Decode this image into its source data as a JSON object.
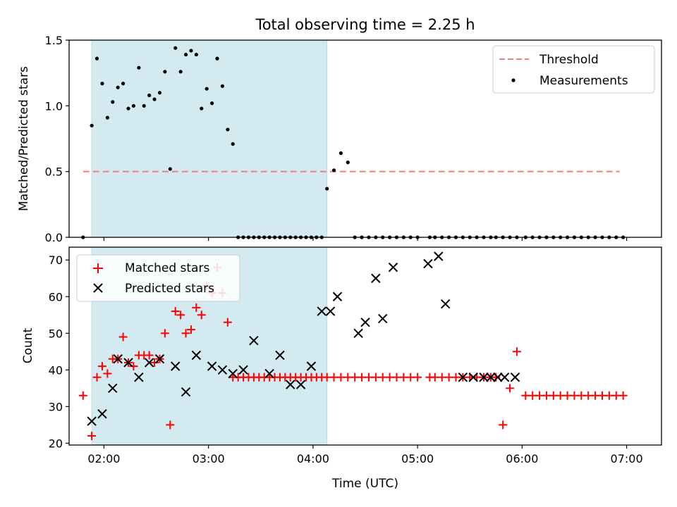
{
  "chart_data": {
    "title": "Total observing time = 2.25 h",
    "x_tick_labels": [
      "02:00",
      "03:00",
      "04:00",
      "05:00",
      "06:00",
      "07:00"
    ],
    "x_ticks_min": [
      120,
      180,
      240,
      300,
      360,
      420
    ],
    "xlim_min": [
      100,
      440
    ],
    "xlabel": "Time (UTC)",
    "shaded_interval_min": [
      113,
      248
    ],
    "shade_color": "#d3eaf0",
    "panels": [
      {
        "type": "scatter",
        "ylabel": "Matched/Predicted stars",
        "ylim": [
          0,
          1.5
        ],
        "y_ticks": [
          "0.0",
          "0.5",
          "1.0",
          "1.5"
        ],
        "threshold": {
          "name": "Threshold",
          "value": 0.5,
          "x_range_min": [
            108,
            416
          ],
          "color": "#f08080"
        },
        "series": [
          {
            "name": "Measurements",
            "color": "#000000",
            "marker": "dot",
            "x_min": [
              108,
              113,
              116,
              119,
              122,
              125,
              128,
              131,
              134,
              137,
              140,
              143,
              146,
              149,
              152,
              155,
              158,
              161,
              164,
              167,
              170,
              173,
              176,
              179,
              182,
              185,
              188,
              191,
              194,
              197,
              200,
              203,
              206,
              209,
              212,
              215,
              218,
              221,
              224,
              227,
              230,
              233,
              236,
              239,
              242,
              245,
              248,
              252,
              256,
              260,
              264,
              268,
              272,
              276,
              280,
              284,
              288,
              292,
              296,
              300,
              307,
              310,
              314,
              318,
              322,
              326,
              330,
              334,
              338,
              342,
              345,
              349,
              353,
              357,
              362,
              366,
              370,
              374,
              378,
              382,
              386,
              390,
              394,
              398,
              402,
              406,
              410,
              414,
              418
            ],
            "y": [
              0.0,
              0.85,
              1.36,
              1.17,
              0.91,
              1.03,
              1.14,
              1.17,
              0.98,
              1.0,
              1.29,
              1.0,
              1.08,
              1.05,
              1.1,
              1.26,
              0.52,
              1.44,
              1.26,
              1.39,
              1.42,
              1.39,
              0.98,
              1.13,
              1.02,
              1.36,
              1.15,
              0.82,
              0.71,
              0.0,
              0.0,
              0.0,
              0.0,
              0.0,
              0.0,
              0.0,
              0.0,
              0.0,
              0.0,
              0.0,
              0.0,
              0.0,
              0.0,
              0.0,
              0.0,
              0.0,
              0.37,
              0.51,
              0.64,
              0.57,
              0.0,
              0.0,
              0.0,
              0.0,
              0.0,
              0.0,
              0.0,
              0.0,
              0.0,
              0.0,
              0.0,
              0.0,
              0.0,
              0.0,
              0.0,
              0.0,
              0.0,
              0.0,
              0.0,
              0.0,
              0.0,
              0.0,
              0.0,
              0.0,
              0.0,
              0.0,
              0.0,
              0.0,
              0.0,
              0.0,
              0.0,
              0.0,
              0.0,
              0.0,
              0.0,
              0.0,
              0.0,
              0.0,
              0.0
            ]
          }
        ],
        "legend": {
          "placement": "top-right",
          "entries": [
            "Threshold",
            "Measurements"
          ]
        }
      },
      {
        "type": "scatter",
        "ylabel": "Count",
        "ylim": [
          19.5,
          73.5
        ],
        "y_ticks": [
          "20",
          "30",
          "40",
          "50",
          "60",
          "70"
        ],
        "series": [
          {
            "name": "Matched stars",
            "color": "#ff0000",
            "marker": "plus",
            "x_min": [
              108,
              113,
              116,
              119,
              122,
              125,
              128,
              131,
              134,
              137,
              140,
              143,
              146,
              149,
              152,
              155,
              158,
              161,
              164,
              167,
              170,
              173,
              176,
              179,
              182,
              185,
              188,
              191,
              194,
              197,
              200,
              203,
              206,
              209,
              212,
              215,
              218,
              221,
              224,
              227,
              230,
              233,
              236,
              239,
              242,
              245,
              248,
              252,
              256,
              260,
              264,
              268,
              272,
              276,
              280,
              284,
              288,
              292,
              296,
              300,
              307,
              310,
              314,
              318,
              322,
              326,
              330,
              334,
              338,
              342,
              345,
              349,
              353,
              357,
              362,
              366,
              370,
              374,
              378,
              382,
              386,
              390,
              394,
              398,
              402,
              406,
              410,
              414,
              418
            ],
            "y": [
              33,
              22,
              38,
              41,
              39,
              43,
              43,
              49,
              42,
              41,
              44,
              44,
              44,
              42,
              43,
              50,
              25,
              56,
              55,
              50,
              51,
              57,
              55,
              63,
              61,
              68,
              61,
              53,
              38,
              38,
              38,
              38,
              38,
              38,
              38,
              38,
              38,
              38,
              38,
              38,
              38,
              38,
              38,
              38,
              38,
              38,
              38,
              38,
              38,
              38,
              38,
              38,
              38,
              38,
              38,
              38,
              38,
              38,
              38,
              38,
              38,
              38,
              38,
              38,
              38,
              38,
              38,
              38,
              38,
              38,
              38,
              25,
              35,
              45,
              33,
              33,
              33,
              33,
              33,
              33,
              33,
              33,
              33,
              33,
              33,
              33,
              33,
              33,
              33
            ]
          },
          {
            "name": "Predicted stars",
            "color": "#000000",
            "marker": "cross",
            "x_min": [
              113,
              119,
              125,
              128,
              134,
              140,
              146,
              152,
              161,
              167,
              173,
              182,
              188,
              194,
              200,
              206,
              215,
              221,
              227,
              233,
              239,
              245,
              250,
              254,
              266,
              270,
              276,
              280,
              286,
              306,
              312,
              316,
              326,
              332,
              338,
              342,
              346,
              350,
              356
            ],
            "y": [
              26,
              28,
              35,
              43,
              42,
              38,
              42,
              43,
              41,
              34,
              44,
              41,
              40,
              39,
              40,
              48,
              39,
              44,
              36,
              36,
              41,
              56,
              56,
              60,
              50,
              53,
              65,
              54,
              68,
              69,
              71,
              58,
              38,
              38,
              38,
              38,
              38,
              38,
              38
            ]
          }
        ],
        "legend": {
          "placement": "top-left",
          "entries": [
            "Matched stars",
            "Predicted stars"
          ]
        }
      }
    ]
  }
}
